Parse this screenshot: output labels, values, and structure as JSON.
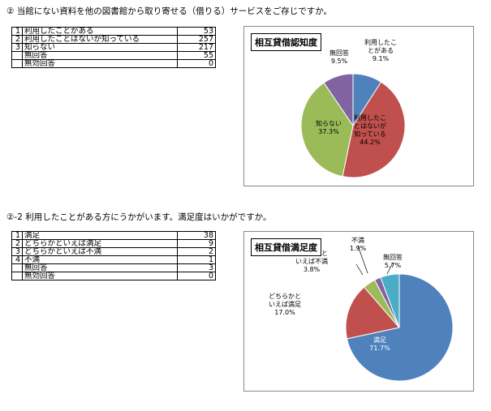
{
  "section1": {
    "question": "② 当館にない資料を他の図書館から取り寄せる（借りる）サービスをご存じですか。",
    "rows": [
      {
        "no": "1",
        "label": "利用したことがある",
        "value": "53"
      },
      {
        "no": "2",
        "label": "利用したことはないが知っている",
        "value": "257"
      },
      {
        "no": "3",
        "label": "知らない",
        "value": "217"
      },
      {
        "no": "",
        "label": "無回答",
        "value": "55"
      },
      {
        "no": "",
        "label": "無効回答",
        "value": "0"
      }
    ]
  },
  "section2": {
    "question": "②-2 利用したことがある方にうかがいます。満足度はいかがですか。",
    "rows": [
      {
        "no": "1",
        "label": "満足",
        "value": "38"
      },
      {
        "no": "2",
        "label": "どちらかといえば満足",
        "value": "9"
      },
      {
        "no": "3",
        "label": "どちらかといえば不満",
        "value": "2"
      },
      {
        "no": "4",
        "label": "不満",
        "value": "1"
      },
      {
        "no": "",
        "label": "無回答",
        "value": "3"
      },
      {
        "no": "",
        "label": "無効回答",
        "value": "0"
      }
    ]
  },
  "chart_data": [
    {
      "type": "pie",
      "title": "相互貸借認知度",
      "slices": [
        {
          "label": "利用したことがある",
          "label_lines": [
            "利用したこ",
            "とがある"
          ],
          "value": 9.1,
          "pct_label": "9.1%",
          "color": "#4f81bd"
        },
        {
          "label": "利用したことはないが知っている",
          "label_lines": [
            "利用したこ",
            "とはないが",
            "知っている"
          ],
          "value": 44.2,
          "pct_label": "44.2%",
          "color": "#c0504d"
        },
        {
          "label": "知らない",
          "label_lines": [
            "知らない"
          ],
          "value": 37.3,
          "pct_label": "37.3%",
          "color": "#9bbb59"
        },
        {
          "label": "無回答",
          "label_lines": [
            "無回答"
          ],
          "value": 9.5,
          "pct_label": "9.5%",
          "color": "#8064a2"
        }
      ]
    },
    {
      "type": "pie",
      "title": "相互貸借満足度",
      "slices": [
        {
          "label": "満足",
          "label_lines": [
            "満足"
          ],
          "value": 71.7,
          "pct_label": "71.7%",
          "color": "#4f81bd"
        },
        {
          "label": "どちらかといえば満足",
          "label_lines": [
            "どちらかと",
            "いえば満足"
          ],
          "value": 17.0,
          "pct_label": "17.0%",
          "color": "#c0504d"
        },
        {
          "label": "どちらかといえば不満",
          "label_lines": [
            "どちらかと",
            "いえば不満"
          ],
          "value": 3.8,
          "pct_label": "3.8%",
          "color": "#9bbb59"
        },
        {
          "label": "不満",
          "label_lines": [
            "不満"
          ],
          "value": 1.9,
          "pct_label": "1.9%",
          "color": "#8064a2"
        },
        {
          "label": "無回答",
          "label_lines": [
            "無回答"
          ],
          "value": 5.7,
          "pct_label": "5.7%",
          "color": "#4bacc6"
        }
      ]
    }
  ]
}
